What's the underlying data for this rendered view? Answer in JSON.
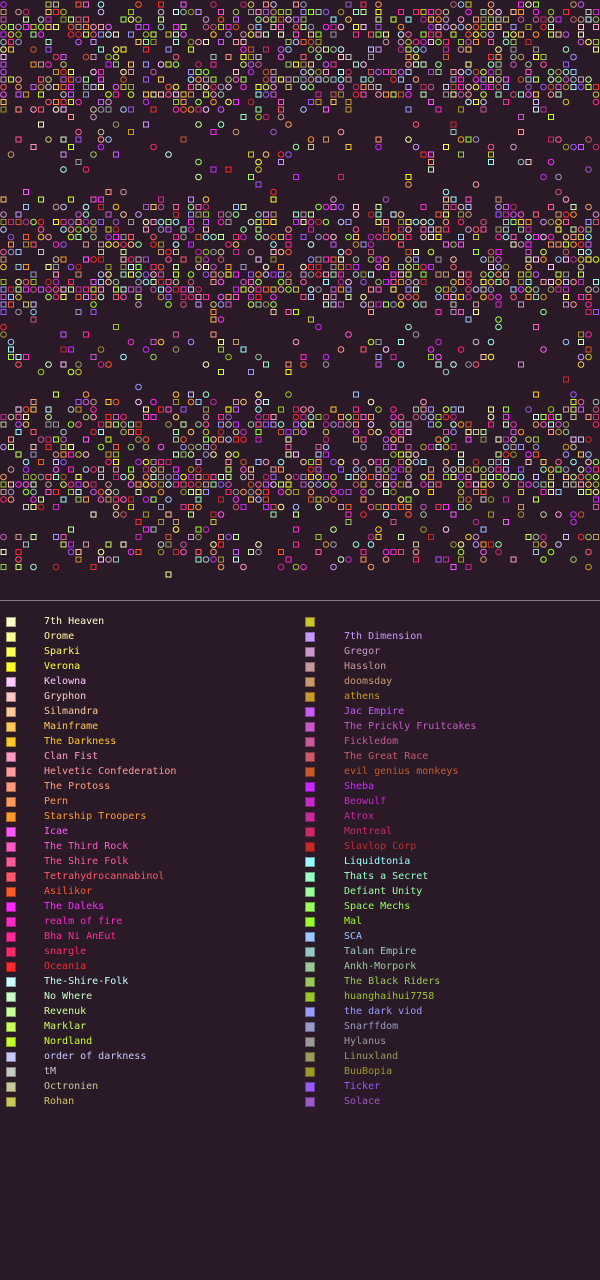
{
  "map": {
    "background": "#2a1a28",
    "note_colors": "marker colors drawn from the legend palette"
  },
  "legend": {
    "left": [
      {
        "name": "7th Heaven",
        "color": "#ffffc8"
      },
      {
        "name": "Orome",
        "color": "#ffff9a"
      },
      {
        "name": "Sparki",
        "color": "#ffff5a"
      },
      {
        "name": "Verona",
        "color": "#ffff2a"
      },
      {
        "name": "Kelowna",
        "color": "#ffc8ff"
      },
      {
        "name": "Gryphon",
        "color": "#ffc8c8"
      },
      {
        "name": "Silmandra",
        "color": "#ffc89a"
      },
      {
        "name": "Mainframe",
        "color": "#ffc85a"
      },
      {
        "name": "The Darkness",
        "color": "#ffc82a"
      },
      {
        "name": "Clan Fist",
        "color": "#ff9ac8"
      },
      {
        "name": "Helvetic Confederation",
        "color": "#ff9a9a"
      },
      {
        "name": "The Protoss",
        "color": "#ff9a7a"
      },
      {
        "name": "Pern",
        "color": "#ff9a5a"
      },
      {
        "name": "Starship Troopers",
        "color": "#ff9a2a"
      },
      {
        "name": "Icae",
        "color": "#ff5aff"
      },
      {
        "name": "The Third Rock",
        "color": "#ff5ac8"
      },
      {
        "name": "The Shire Folk",
        "color": "#ff5a9a"
      },
      {
        "name": "Tetrahydrocannabinol",
        "color": "#ff5a6a"
      },
      {
        "name": "Asilikor",
        "color": "#ff5a2a"
      },
      {
        "name": "The Daleks",
        "color": "#ff2aff"
      },
      {
        "name": "realm of fire",
        "color": "#ff2ac8"
      },
      {
        "name": "Bha Ni AnEut",
        "color": "#ff2a9a"
      },
      {
        "name": "snargle",
        "color": "#ff2a6a"
      },
      {
        "name": "Oceania",
        "color": "#ff2a2a"
      },
      {
        "name": "The-Shire-Folk",
        "color": "#c8ffff"
      },
      {
        "name": "No Where",
        "color": "#c8ffc8"
      },
      {
        "name": "Revenuk",
        "color": "#c8ff9a"
      },
      {
        "name": "Marklar",
        "color": "#c8ff5a"
      },
      {
        "name": "Nordland",
        "color": "#c8ff2a"
      },
      {
        "name": "order of darkness",
        "color": "#c8c8ff"
      },
      {
        "name": "tM",
        "color": "#c8c8c8"
      },
      {
        "name": "Octronien",
        "color": "#c8c89a"
      },
      {
        "name": "Rohan",
        "color": "#c8c85a"
      }
    ],
    "right": [
      {
        "name": "",
        "color": "#c8c82a"
      },
      {
        "name": "7th Dimension",
        "color": "#c89aff"
      },
      {
        "name": "Gregor",
        "color": "#c89ac8"
      },
      {
        "name": "Hasslon",
        "color": "#c89a9a"
      },
      {
        "name": "doomsday",
        "color": "#c89a6a"
      },
      {
        "name": "athens",
        "color": "#c89a2a"
      },
      {
        "name": "Jac Empire",
        "color": "#c85aff"
      },
      {
        "name": "The Prickly Fruitcakes",
        "color": "#c85ac8"
      },
      {
        "name": "Fickledom",
        "color": "#c85a9a"
      },
      {
        "name": "The Great Race",
        "color": "#c85a6a"
      },
      {
        "name": "evil genius monkeys",
        "color": "#c85a2a"
      },
      {
        "name": "Sheba",
        "color": "#c82aff"
      },
      {
        "name": "Beowulf",
        "color": "#c82ac8"
      },
      {
        "name": "Atrox",
        "color": "#c82a9a"
      },
      {
        "name": "Montreal",
        "color": "#c82a6a"
      },
      {
        "name": "Slavlop Corp",
        "color": "#c82a2a"
      },
      {
        "name": "Liquidtonia",
        "color": "#9affff"
      },
      {
        "name": "Thats a Secret",
        "color": "#9affc8"
      },
      {
        "name": "Defiant Unity",
        "color": "#9aff9a"
      },
      {
        "name": "Space Mechs",
        "color": "#9aff5a"
      },
      {
        "name": "Mal",
        "color": "#9aff2a"
      },
      {
        "name": "SCA",
        "color": "#9ac8ff"
      },
      {
        "name": "Talan Empire",
        "color": "#9ac8c8"
      },
      {
        "name": "Ankh-Morpork",
        "color": "#9ac89a"
      },
      {
        "name": "The Black Riders",
        "color": "#9ac85a"
      },
      {
        "name": "huanghaihui7758",
        "color": "#9ac82a"
      },
      {
        "name": "the dark viod",
        "color": "#9a9aff"
      },
      {
        "name": "Snarffdom",
        "color": "#9a9ac8"
      },
      {
        "name": "Hylanus",
        "color": "#9a9a9a"
      },
      {
        "name": "Linuxland",
        "color": "#9a9a5a"
      },
      {
        "name": "BuuBopia",
        "color": "#9a9a2a"
      },
      {
        "name": "Ticker",
        "color": "#9a5aff"
      },
      {
        "name": "Solace",
        "color": "#9a5ac8"
      }
    ]
  }
}
